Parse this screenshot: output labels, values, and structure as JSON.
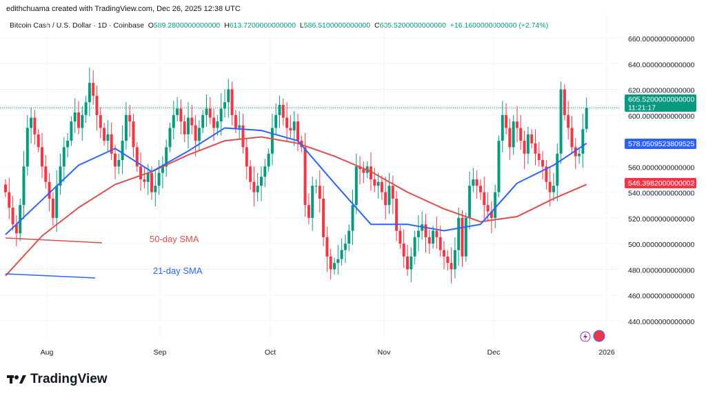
{
  "credit": "edithchuama created with TradingView.com, Dec 26, 2025 12:38 UTC",
  "legend": {
    "symbol": "Bitcoin Cash / U.S. Dollar · 1D · Coinbase",
    "o_label": "O",
    "o": "589.2800000000000",
    "h_label": "H",
    "h": "613.7200000000000",
    "l_label": "L",
    "l": "586.5100000000000",
    "c_label": "C",
    "c": "605.5200000000000",
    "change": "+16.1600000000000 (+2.74%)"
  },
  "chart_data": {
    "type": "candlestick",
    "colors": {
      "up": "#089981",
      "down": "#f23645",
      "sma21": "#2962ff",
      "sma50": "#e04b4b"
    },
    "ylim": [
      430,
      670
    ],
    "y_ticks": [
      "660.0000000000000",
      "640.0000000000000",
      "620.0000000000000",
      "600.0000000000000",
      "560.0000000000000",
      "540.0000000000000",
      "520.0000000000000",
      "500.0000000000000",
      "480.0000000000000",
      "460.0000000000000",
      "440.0000000000000"
    ],
    "x_ticks": [
      "Aug",
      "Sep",
      "Oct",
      "Nov",
      "Dec",
      "2026"
    ],
    "first_date": "2025-07-20",
    "closes": [
      540,
      528,
      515,
      508,
      530,
      560,
      590,
      598,
      585,
      575,
      560,
      548,
      535,
      520,
      545,
      560,
      575,
      580,
      595,
      602,
      590,
      600,
      610,
      625,
      615,
      600,
      590,
      580,
      585,
      570,
      560,
      565,
      580,
      600,
      595,
      575,
      560,
      550,
      548,
      555,
      540,
      545,
      555,
      560,
      575,
      590,
      600,
      605,
      595,
      585,
      598,
      592,
      580,
      590,
      600,
      605,
      598,
      590,
      595,
      605,
      610,
      620,
      600,
      590,
      592,
      575,
      560,
      548,
      540,
      545,
      552,
      560,
      570,
      590,
      600,
      608,
      598,
      590,
      588,
      595,
      580,
      575,
      530,
      520,
      545,
      545,
      535,
      505,
      490,
      480,
      485,
      488,
      495,
      500,
      510,
      530,
      560,
      558,
      555,
      560,
      550,
      545,
      548,
      540,
      530,
      545,
      535,
      510,
      500,
      490,
      480,
      490,
      505,
      510,
      515,
      505,
      500,
      510,
      505,
      495,
      490,
      485,
      480,
      495,
      520,
      490,
      520,
      545,
      550,
      545,
      540,
      530,
      525,
      520,
      540,
      580,
      600,
      590,
      575,
      595,
      590,
      580,
      570,
      585,
      578,
      570,
      565,
      560,
      548,
      540,
      545,
      570,
      620,
      600,
      590,
      575,
      568,
      570,
      589,
      605.52
    ],
    "last_candle": {
      "open": 589.28,
      "high": 613.72,
      "low": 586.51,
      "close": 605.52
    },
    "sma21_every10d": [
      507,
      534,
      561,
      574,
      556,
      572,
      590,
      588,
      580,
      547,
      515,
      515,
      510,
      515,
      547,
      561,
      578
    ],
    "sma50_every10d": [
      475,
      506,
      528,
      546,
      556,
      569,
      580,
      583,
      578,
      568,
      556,
      540,
      527,
      517,
      521,
      535,
      546
    ],
    "price_tags": {
      "last": "605.5200000000000",
      "countdown": "11:21:17",
      "sma21": "578.0509523809525",
      "sma50": "546.3982000000002"
    },
    "annotations": {
      "sma50": "50-day SMA",
      "sma21": "21-day SMA"
    }
  },
  "logo": "TradingView"
}
